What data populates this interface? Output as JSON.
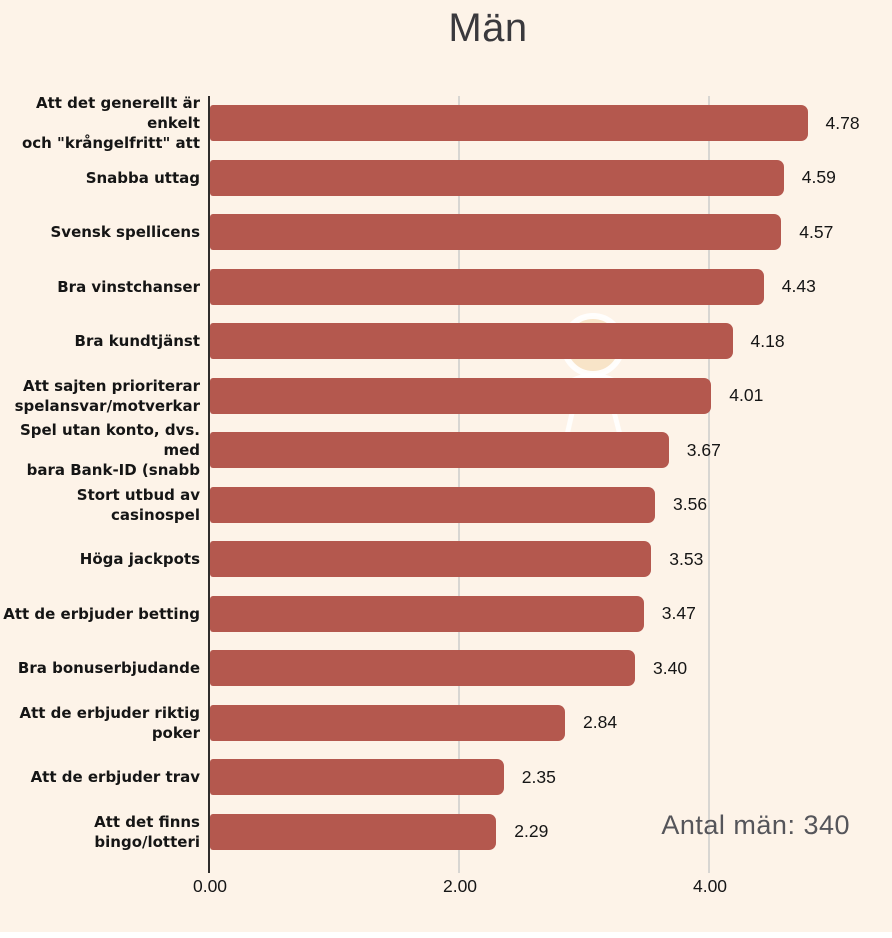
{
  "chart_data": {
    "type": "bar",
    "orientation": "horizontal",
    "title": "Män",
    "categories": [
      [
        "Att det generellt är enkelt",
        "och \"krångelfritt\" att"
      ],
      [
        "Snabba uttag"
      ],
      [
        "Svensk spellicens"
      ],
      [
        "Bra vinstchanser"
      ],
      [
        "Bra kundtjänst"
      ],
      [
        "Att sajten prioriterar",
        "spelansvar/motverkar"
      ],
      [
        "Spel utan konto, dvs. med",
        "bara Bank-ID (snabb"
      ],
      [
        "Stort utbud av casinospel"
      ],
      [
        "Höga jackpots"
      ],
      [
        "Att de erbjuder betting"
      ],
      [
        "Bra bonuserbjudande"
      ],
      [
        "Att de erbjuder riktig",
        "poker"
      ],
      [
        "Att de erbjuder trav"
      ],
      [
        "Att det finns bingo/lotteri"
      ]
    ],
    "values": [
      4.78,
      4.59,
      4.57,
      4.43,
      4.18,
      4.01,
      3.67,
      3.56,
      3.53,
      3.47,
      3.4,
      2.84,
      2.35,
      2.29
    ],
    "value_labels": [
      "4.78",
      "4.59",
      "4.57",
      "4.43",
      "4.18",
      "4.01",
      "3.67",
      "3.56",
      "3.53",
      "3.47",
      "3.40",
      "2.84",
      "2.35",
      "2.29"
    ],
    "xlabel": "",
    "ylabel": "",
    "xlim": [
      0,
      5.46
    ],
    "x_ticks": [
      {
        "value": 0,
        "label": "0.00"
      },
      {
        "value": 2,
        "label": "2.00"
      },
      {
        "value": 4,
        "label": "4.00"
      }
    ],
    "grid": "vertical-only",
    "legend": "none",
    "annotation": "Antal män: 340",
    "colors": {
      "bar": "#b4584e",
      "background": "#fdf3e8",
      "grid": "#d8d6d2",
      "axis": "#2e2c2b",
      "title": "#3a393d",
      "annotation": "#55555a",
      "text": "#151515",
      "watermark_circle_fill": "#f8e4c8",
      "watermark_stroke": "#ffffff"
    }
  }
}
